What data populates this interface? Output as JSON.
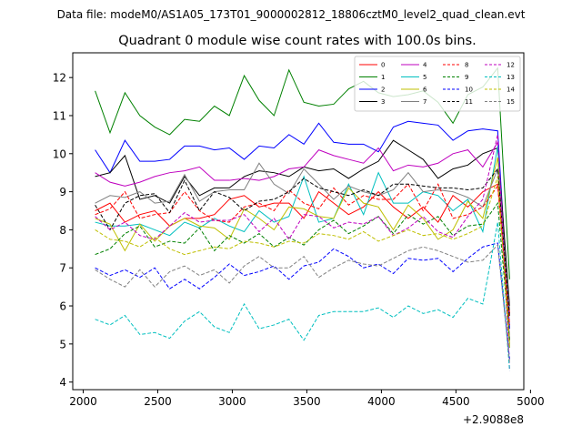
{
  "chart_data": {
    "type": "line",
    "suptitle": "Data file: modeM0/AS1A05_173T01_9000002812_18806cztM0_level2_quad_clean.evt",
    "title": "Quadrant 0 module wise count rates with 100.0s bins.",
    "xlabel": "",
    "ylabel": "",
    "offset_label": "+2.9088e8",
    "xlim": [
      1930,
      4955
    ],
    "ylim": [
      3.8,
      12.65
    ],
    "xticks": [
      2000,
      2500,
      3000,
      3500,
      4000,
      4500,
      5000
    ],
    "yticks": [
      4,
      5,
      6,
      7,
      8,
      9,
      10,
      11,
      12
    ],
    "x": [
      2080,
      2180,
      2280,
      2380,
      2480,
      2580,
      2680,
      2780,
      2880,
      2980,
      3080,
      3180,
      3280,
      3380,
      3480,
      3580,
      3680,
      3780,
      3880,
      3980,
      4080,
      4180,
      4280,
      4380,
      4480,
      4580,
      4680,
      4780,
      4860
    ],
    "series": [
      {
        "name": "0",
        "color": "#ff0000",
        "dash": "solid",
        "values": [
          8.5,
          8.7,
          8.2,
          8.4,
          8.5,
          8.1,
          8.3,
          8.3,
          8.4,
          8.8,
          8.9,
          8.6,
          8.7,
          8.7,
          8.3,
          9.0,
          8.7,
          8.4,
          8.6,
          9.0,
          8.6,
          8.3,
          8.6,
          8.2,
          8.9,
          8.6,
          9.0,
          9.2,
          5.8
        ]
      },
      {
        "name": "1",
        "color": "#008000",
        "dash": "solid",
        "values": [
          11.65,
          10.55,
          11.6,
          11.0,
          10.7,
          10.5,
          10.9,
          10.85,
          11.25,
          11.0,
          12.05,
          11.4,
          11.0,
          12.2,
          11.35,
          11.25,
          11.3,
          11.7,
          11.9,
          11.6,
          11.5,
          11.55,
          11.65,
          11.35,
          10.8,
          11.55,
          11.75,
          12.25,
          6.7
        ]
      },
      {
        "name": "2",
        "color": "#0000ff",
        "dash": "solid",
        "values": [
          10.1,
          9.5,
          10.35,
          9.8,
          9.8,
          9.85,
          10.2,
          10.2,
          10.1,
          10.15,
          9.85,
          10.2,
          10.15,
          10.5,
          10.25,
          10.8,
          10.3,
          10.25,
          10.25,
          10.05,
          10.7,
          10.85,
          10.8,
          10.75,
          10.35,
          10.6,
          10.65,
          10.6,
          5.4
        ]
      },
      {
        "name": "3",
        "color": "#000000",
        "dash": "solid",
        "values": [
          9.4,
          9.5,
          9.95,
          8.8,
          8.9,
          8.7,
          9.4,
          8.9,
          9.1,
          9.1,
          9.4,
          9.55,
          9.5,
          9.4,
          9.65,
          9.55,
          9.6,
          9.35,
          9.6,
          9.8,
          10.35,
          10.1,
          9.85,
          9.35,
          9.6,
          9.7,
          10.0,
          10.15,
          6.0
        ]
      },
      {
        "name": "4",
        "color": "#bf00bf",
        "dash": "solid",
        "values": [
          9.5,
          9.25,
          9.15,
          9.25,
          9.4,
          9.5,
          9.55,
          9.65,
          9.3,
          9.3,
          9.35,
          9.3,
          9.4,
          9.6,
          9.65,
          10.1,
          9.95,
          9.85,
          9.75,
          10.15,
          9.55,
          9.7,
          9.65,
          9.75,
          10.0,
          10.1,
          9.65,
          10.3,
          5.1
        ]
      },
      {
        "name": "5",
        "color": "#00bfbf",
        "dash": "solid",
        "values": [
          8.2,
          8.1,
          8.1,
          8.15,
          8.0,
          7.85,
          8.2,
          8.05,
          8.3,
          8.1,
          7.95,
          8.5,
          8.2,
          8.35,
          9.4,
          8.2,
          8.3,
          9.2,
          8.4,
          9.5,
          8.7,
          8.7,
          9.0,
          8.9,
          8.5,
          8.8,
          7.95,
          10.2,
          4.9
        ]
      },
      {
        "name": "6",
        "color": "#bfbf00",
        "dash": "solid",
        "values": [
          8.3,
          8.15,
          7.45,
          8.15,
          7.7,
          8.1,
          8.3,
          8.1,
          8.05,
          7.75,
          8.55,
          8.3,
          8.0,
          8.6,
          8.55,
          8.35,
          8.3,
          9.1,
          8.7,
          8.6,
          8.0,
          8.65,
          8.3,
          7.75,
          8.0,
          8.75,
          8.3,
          9.9,
          5.0
        ]
      },
      {
        "name": "7",
        "color": "#808080",
        "dash": "solid",
        "values": [
          8.7,
          8.9,
          8.85,
          9.0,
          8.7,
          8.75,
          9.45,
          8.75,
          9.0,
          9.05,
          9.05,
          9.75,
          9.2,
          8.95,
          9.6,
          9.2,
          8.8,
          9.15,
          9.0,
          8.9,
          9.05,
          9.5,
          9.0,
          9.05,
          9.0,
          8.85,
          8.6,
          9.6,
          5.9
        ]
      },
      {
        "name": "8",
        "color": "#ff0000",
        "dash": "dashed",
        "values": [
          8.4,
          8.55,
          9.0,
          8.3,
          8.4,
          8.45,
          9.0,
          8.5,
          8.25,
          8.2,
          8.6,
          8.7,
          8.5,
          9.05,
          8.7,
          8.55,
          9.1,
          8.65,
          8.9,
          8.8,
          8.8,
          9.2,
          8.5,
          9.2,
          8.3,
          8.4,
          8.6,
          9.15,
          5.5
        ]
      },
      {
        "name": "9",
        "color": "#008000",
        "dash": "dashed",
        "values": [
          7.35,
          7.5,
          7.9,
          8.1,
          7.55,
          7.7,
          7.65,
          8.05,
          7.45,
          7.85,
          7.65,
          7.9,
          7.55,
          7.8,
          7.6,
          8.0,
          8.25,
          7.9,
          8.1,
          8.35,
          7.9,
          8.4,
          8.15,
          8.35,
          7.85,
          8.1,
          8.15,
          8.7,
          5.1
        ]
      },
      {
        "name": "10",
        "color": "#0000ff",
        "dash": "dashed",
        "values": [
          7.0,
          6.8,
          6.95,
          6.75,
          7.0,
          6.45,
          6.7,
          6.45,
          6.75,
          7.1,
          6.8,
          6.9,
          7.05,
          6.7,
          7.05,
          7.15,
          7.5,
          7.3,
          7.0,
          7.1,
          6.85,
          7.25,
          7.2,
          7.25,
          6.9,
          7.25,
          7.55,
          7.65,
          4.6
        ]
      },
      {
        "name": "11",
        "color": "#000000",
        "dash": "dashed",
        "values": [
          8.65,
          8.0,
          8.7,
          8.9,
          8.95,
          8.45,
          9.3,
          8.5,
          9.0,
          8.85,
          8.5,
          8.75,
          8.8,
          9.0,
          9.35,
          9.1,
          9.0,
          8.9,
          9.05,
          8.9,
          9.2,
          9.2,
          9.15,
          9.1,
          9.1,
          9.05,
          9.1,
          9.6,
          5.7
        ]
      },
      {
        "name": "12",
        "color": "#bf00bf",
        "dash": "dashed",
        "values": [
          8.35,
          8.0,
          8.2,
          7.85,
          7.75,
          8.1,
          8.45,
          8.2,
          8.25,
          8.25,
          8.4,
          7.95,
          8.3,
          7.75,
          8.4,
          8.35,
          8.05,
          8.2,
          8.15,
          8.35,
          7.85,
          8.05,
          8.35,
          7.95,
          7.8,
          8.35,
          8.8,
          10.5,
          4.3
        ]
      },
      {
        "name": "13",
        "color": "#00bfbf",
        "dash": "dashed",
        "values": [
          5.65,
          5.5,
          5.75,
          5.25,
          5.3,
          5.15,
          5.6,
          5.85,
          5.45,
          5.3,
          6.05,
          5.4,
          5.5,
          5.65,
          5.1,
          5.75,
          5.85,
          5.85,
          5.85,
          5.95,
          5.7,
          6.0,
          5.8,
          5.9,
          5.7,
          6.2,
          6.05,
          8.2,
          4.3
        ]
      },
      {
        "name": "14",
        "color": "#bfbf00",
        "dash": "dashed",
        "values": [
          8.0,
          7.75,
          7.7,
          7.55,
          7.8,
          7.5,
          7.35,
          7.45,
          7.55,
          7.5,
          7.7,
          7.65,
          7.55,
          7.7,
          7.65,
          7.9,
          7.85,
          7.75,
          7.95,
          7.7,
          7.85,
          8.0,
          7.85,
          7.9,
          7.75,
          7.9,
          8.1,
          9.4,
          4.9
        ]
      },
      {
        "name": "15",
        "color": "#808080",
        "dash": "dashed",
        "values": [
          6.95,
          6.7,
          6.5,
          6.95,
          6.5,
          6.9,
          7.05,
          6.8,
          6.95,
          6.6,
          7.05,
          7.3,
          7.0,
          7.0,
          7.3,
          6.75,
          7.0,
          7.2,
          7.1,
          7.05,
          7.25,
          7.45,
          7.55,
          7.45,
          7.3,
          7.15,
          7.2,
          7.6,
          4.5
        ]
      }
    ],
    "grid": false,
    "legend_position": "top-right"
  }
}
